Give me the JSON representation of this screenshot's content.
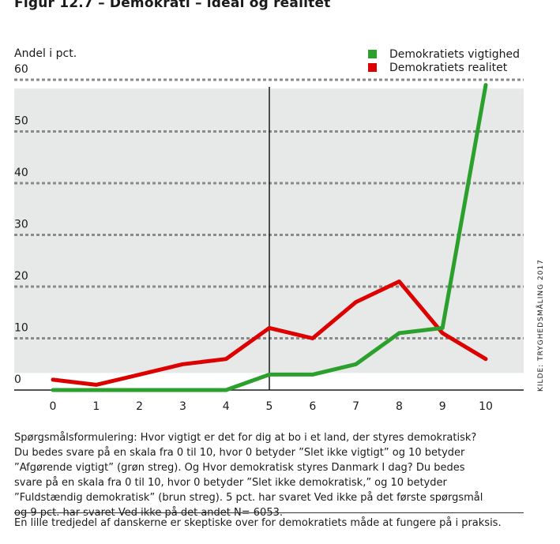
{
  "figure_title": "Figur 12.7 – Demokrati – ideal og realitet",
  "source": "KILDE: TRYGHEDSMÅLING 2017",
  "note": "Spørgsmålsformulering: Hvor vigtigt er det for dig at bo i et land, der styres demokratisk? Du bedes svare på en skala fra 0 til 10, hvor 0 betyder ”Slet ikke vigtigt” og 10 betyder ”Afgørende vigtigt” (grøn streg). Og Hvor demokratisk styres Danmark I dag? Du bedes svare på en skala fra 0 til 10, hvor 0 betyder ”Slet ikke demokratisk,” og 10 betyder ”Fuldstændig demokratisk” (brun streg). 5 pct. har svaret Ved ikke på det første spørgsmål og 9 pct. har svaret Ved ikke på det andet N= 6053.",
  "caption": "En lille tredjedel af danskerne er skeptiske over for demokratiets måde at fungere på i praksis.",
  "chart_data": {
    "type": "line",
    "ylabel": "Andel i pct.",
    "xlabel": "",
    "x": [
      0,
      1,
      2,
      3,
      4,
      5,
      6,
      7,
      8,
      9,
      10
    ],
    "ylim": [
      0,
      60
    ],
    "yticks": [
      0,
      10,
      20,
      30,
      40,
      50,
      60
    ],
    "grid": true,
    "legend_position": "top-right",
    "reference_line_x": 5,
    "shaded_band": [
      3.3,
      58.3
    ],
    "series": [
      {
        "name": "Demokratiets vigtighed",
        "color": "#2ca02c",
        "values": [
          0,
          0,
          0,
          0,
          0,
          3,
          3,
          5,
          11,
          12,
          59
        ]
      },
      {
        "name": "Demokratiets realitet",
        "color": "#dd0000",
        "values": [
          2,
          1,
          3,
          5,
          6,
          12,
          10,
          17,
          21,
          11,
          6
        ]
      }
    ]
  }
}
